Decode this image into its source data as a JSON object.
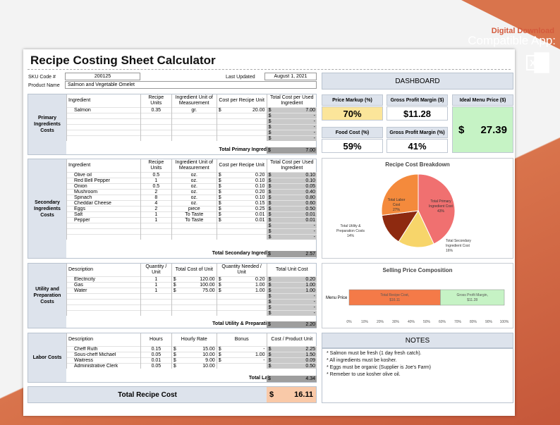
{
  "promo": {
    "download": "Digital Download",
    "compatible": "Compatible App:"
  },
  "title": "Recipe Costing Sheet Calculator",
  "meta": {
    "sku_label": "SKU Code #",
    "sku": "200125",
    "updated_label": "Last Updated",
    "updated": "August 1, 2021",
    "product_label": "Product Name",
    "product": "Salmon and Vegetable Omelet"
  },
  "primary": {
    "label": "Primary Ingredients Costs",
    "headers": [
      "Ingredient",
      "Recipe Units",
      "Ingredient Unit of Measurement",
      "Cost per Recipe Unit",
      "Total Cost per Used Ingredient"
    ],
    "rows": [
      {
        "name": "Salmon",
        "units": "0.35",
        "uom": "gr.",
        "cur": "$",
        "cost": "20.00",
        "tcur": "$",
        "total": "7.00"
      },
      {
        "name": "",
        "units": "",
        "uom": "",
        "cur": "",
        "cost": "",
        "tcur": "$",
        "total": "-"
      },
      {
        "name": "",
        "units": "",
        "uom": "",
        "cur": "",
        "cost": "",
        "tcur": "$",
        "total": "-"
      },
      {
        "name": "",
        "units": "",
        "uom": "",
        "cur": "",
        "cost": "",
        "tcur": "$",
        "total": "-"
      },
      {
        "name": "",
        "units": "",
        "uom": "",
        "cur": "",
        "cost": "",
        "tcur": "$",
        "total": "-"
      },
      {
        "name": "",
        "units": "",
        "uom": "",
        "cur": "",
        "cost": "",
        "tcur": "$",
        "total": "-"
      }
    ],
    "total_label": "Total Primary Ingredient Cost",
    "total_cur": "$",
    "total": "7.00"
  },
  "secondary": {
    "label": "Secondary Ingredients Costs",
    "headers": [
      "Ingredient",
      "Recipe Units",
      "Ingredient Unit of Measurement",
      "Cost per Recipe Unit",
      "Total Cost per Used Ingredient"
    ],
    "rows": [
      {
        "name": "Olive oil",
        "units": "0.5",
        "uom": "oz.",
        "cur": "$",
        "cost": "0.20",
        "tcur": "$",
        "total": "0.10"
      },
      {
        "name": "Red Bell Pepper",
        "units": "1",
        "uom": "oz.",
        "cur": "$",
        "cost": "0.10",
        "tcur": "$",
        "total": "0.10"
      },
      {
        "name": "Onion",
        "units": "0.5",
        "uom": "oz.",
        "cur": "$",
        "cost": "0.10",
        "tcur": "$",
        "total": "0.05"
      },
      {
        "name": "Mushroom",
        "units": "2",
        "uom": "oz.",
        "cur": "$",
        "cost": "0.20",
        "tcur": "$",
        "total": "0.40"
      },
      {
        "name": "Spinach",
        "units": "8",
        "uom": "oz.",
        "cur": "$",
        "cost": "0.10",
        "tcur": "$",
        "total": "0.80"
      },
      {
        "name": "Cheddar Cheese",
        "units": "4",
        "uom": "oz.",
        "cur": "$",
        "cost": "0.15",
        "tcur": "$",
        "total": "0.60"
      },
      {
        "name": "Eggs",
        "units": "2",
        "uom": "piece",
        "cur": "$",
        "cost": "0.25",
        "tcur": "$",
        "total": "0.50"
      },
      {
        "name": "Salt",
        "units": "1",
        "uom": "To Taste",
        "cur": "$",
        "cost": "0.01",
        "tcur": "$",
        "total": "0.01"
      },
      {
        "name": "Pepper",
        "units": "1",
        "uom": "To Taste",
        "cur": "$",
        "cost": "0.01",
        "tcur": "$",
        "total": "0.01"
      },
      {
        "name": "",
        "units": "",
        "uom": "",
        "cur": "",
        "cost": "",
        "tcur": "$",
        "total": "-"
      },
      {
        "name": "",
        "units": "",
        "uom": "",
        "cur": "",
        "cost": "",
        "tcur": "$",
        "total": "-"
      },
      {
        "name": "",
        "units": "",
        "uom": "",
        "cur": "",
        "cost": "",
        "tcur": "$",
        "total": "-"
      }
    ],
    "total_label": "Total Secondary Ingredient Cost",
    "total_cur": "$",
    "total": "2.57"
  },
  "utility": {
    "label": "Utility and Preparation Costs",
    "headers": [
      "Description",
      "Quantity / Unit",
      "Total Cost of Unit",
      "Quantity Needed / Unit",
      "Total Unit Cost"
    ],
    "rows": [
      {
        "name": "Electricity",
        "units": "1",
        "cur": "$",
        "cost": "120.00",
        "qcur": "$",
        "qty": "0.20",
        "tcur": "$",
        "total": "0.20"
      },
      {
        "name": "Gas",
        "units": "1",
        "cur": "$",
        "cost": "100.00",
        "qcur": "$",
        "qty": "1.00",
        "tcur": "$",
        "total": "1.00"
      },
      {
        "name": "Water",
        "units": "1",
        "cur": "$",
        "cost": "75.00",
        "qcur": "$",
        "qty": "1.00",
        "tcur": "$",
        "total": "1.00"
      },
      {
        "name": "",
        "units": "",
        "cur": "",
        "cost": "",
        "qcur": "",
        "qty": "",
        "tcur": "$",
        "total": "-"
      },
      {
        "name": "",
        "units": "",
        "cur": "",
        "cost": "",
        "qcur": "",
        "qty": "",
        "tcur": "$",
        "total": "-"
      },
      {
        "name": "",
        "units": "",
        "cur": "",
        "cost": "",
        "qcur": "",
        "qty": "",
        "tcur": "$",
        "total": "-"
      },
      {
        "name": "",
        "units": "",
        "cur": "",
        "cost": "",
        "qcur": "",
        "qty": "",
        "tcur": "$",
        "total": "-"
      }
    ],
    "total_label": "Total Utility & Preparation Costs",
    "total_cur": "$",
    "total": "2.20"
  },
  "labor": {
    "label": "Labor Costs",
    "headers": [
      "Description",
      "Hours",
      "Hourly Rate",
      "Bonus",
      "Cost / Product Unit"
    ],
    "rows": [
      {
        "name": "Cheff Ruth",
        "units": "0.15",
        "cur": "$",
        "cost": "15.00",
        "qcur": "$",
        "qty": "-",
        "tcur": "$",
        "total": "2.25"
      },
      {
        "name": "Sous-cheff Michael",
        "units": "0.05",
        "cur": "$",
        "cost": "10.00",
        "qcur": "$",
        "qty": "1.00",
        "tcur": "$",
        "total": "1.50"
      },
      {
        "name": "Waitress",
        "units": "0.01",
        "cur": "$",
        "cost": "9.00",
        "qcur": "$",
        "qty": "-",
        "tcur": "$",
        "total": "0.09"
      },
      {
        "name": "Administrative Clerk",
        "units": "0.05",
        "cur": "$",
        "cost": "10.00",
        "qcur": "",
        "qty": "",
        "tcur": "$",
        "total": "0.50"
      }
    ],
    "total_label": "Total Labor Cost",
    "total_cur": "$",
    "total": "4.34"
  },
  "recipe_total": {
    "label": "Total Recipe Cost",
    "cur": "$",
    "value": "16.11"
  },
  "dashboard": {
    "title": "DASHBOARD",
    "price_markup_label": "Price Markup (%)",
    "price_markup": "70%",
    "gpm_dollar_label": "Gross Profit Margin ($)",
    "gpm_dollar": "$11.28",
    "menu_price_label": "Ideal Menu Price ($)",
    "menu_price_cur": "$",
    "menu_price": "27.39",
    "food_cost_label": "Food Cost (%)",
    "food_cost": "59%",
    "gpm_pct_label": "Gross Profit Margin (%)",
    "gpm_pct": "41%",
    "colors": {
      "markup": "#fbe59a",
      "menu": "#c6f3c5"
    }
  },
  "chart_data": [
    {
      "type": "pie",
      "title": "Recipe Cost Breakdown",
      "slices": [
        {
          "label": "Total Primary Ingredient Cost",
          "pct": "43%",
          "value": 43,
          "color": "#f07070"
        },
        {
          "label": "Total Secondary Ingredient Cost",
          "pct": "16%",
          "value": 16,
          "color": "#f7d56a"
        },
        {
          "label": "Total Utility & Preparation Costs",
          "pct": "14%",
          "value": 14,
          "color": "#8e2a10"
        },
        {
          "label": "Total Labor Cost",
          "pct": "27%",
          "value": 27,
          "color": "#f48a3c"
        }
      ]
    },
    {
      "type": "bar",
      "title": "Selling Price Composition",
      "categories": [
        "Menu Price"
      ],
      "series": [
        {
          "name": "Total Recipe Cost",
          "label_value": "$16.11",
          "value": 16.11,
          "color": "#f47a48"
        },
        {
          "name": "Gross Profit Margin",
          "label_value": "$11.28",
          "value": 11.28,
          "color": "#c6f3c5"
        }
      ],
      "x_ticks": [
        "0%",
        "10%",
        "20%",
        "30%",
        "40%",
        "50%",
        "60%",
        "70%",
        "80%",
        "90%",
        "100%"
      ]
    }
  ],
  "notes": {
    "title": "NOTES",
    "items": [
      "* Salmon must be fresh (1 day fresh catch).",
      "* All ingredients must be kosher.",
      "* Eggs must be organic (Supplier is Joe's Farm)",
      "* Remeber to use kosher olive oil."
    ]
  }
}
